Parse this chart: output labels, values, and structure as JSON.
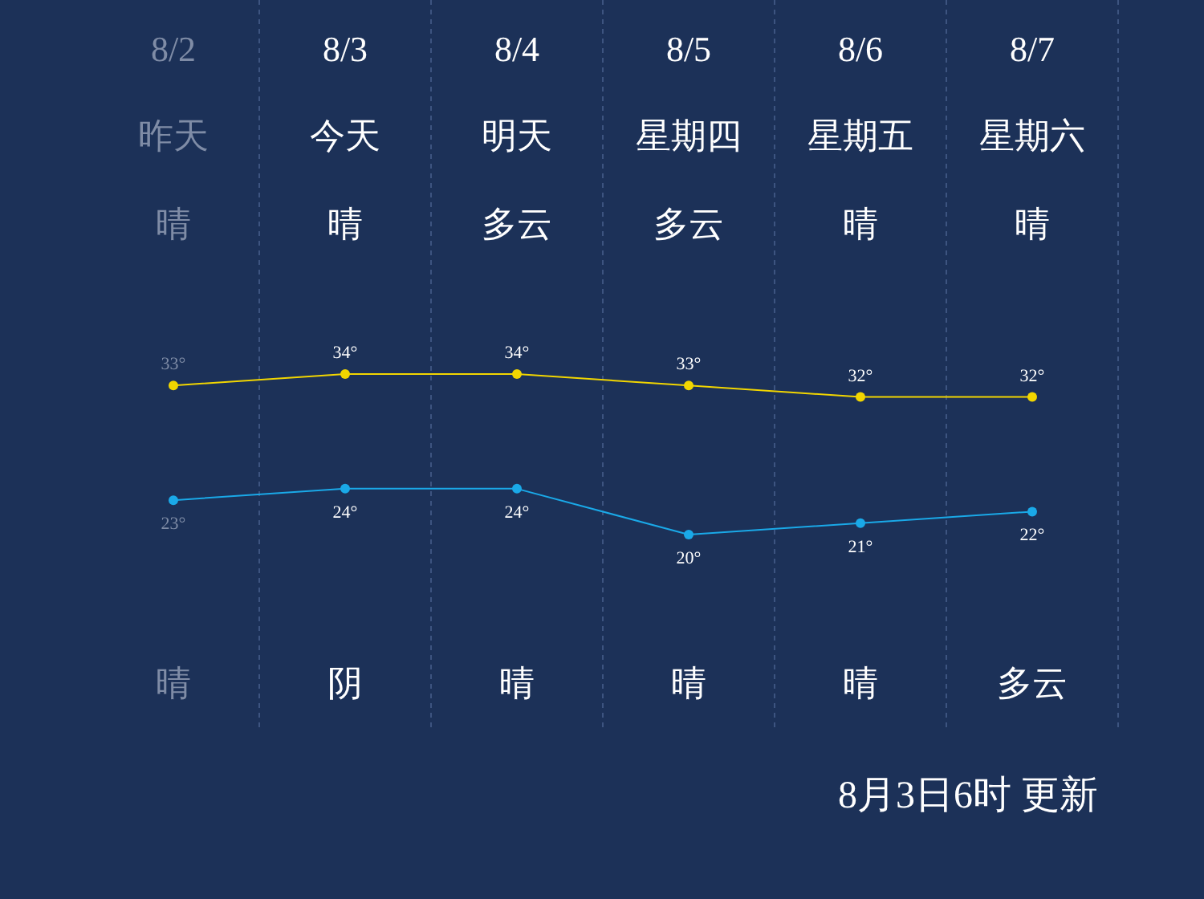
{
  "chart_data": {
    "type": "line",
    "categories": [
      "8/2",
      "8/3",
      "8/4",
      "8/5",
      "8/6",
      "8/7"
    ],
    "series": [
      {
        "color": "#f2d600",
        "values": [
          33,
          34,
          34,
          33,
          32,
          32
        ],
        "value_labels": [
          "33°",
          "34°",
          "34°",
          "33°",
          "32°",
          "32°"
        ]
      },
      {
        "color": "#1aa9e8",
        "values": [
          23,
          24,
          24,
          20,
          21,
          22
        ],
        "value_labels": [
          "23°",
          "24°",
          "24°",
          "20°",
          "21°",
          "22°"
        ]
      }
    ],
    "marker": "circle",
    "grid": "x",
    "annotations": [
      "昨天",
      "今天",
      "明天",
      "星期四",
      "星期五",
      "星期六",
      "晴",
      "晴",
      "多云",
      "多云",
      "晴",
      "晴",
      "晴",
      "阴",
      "晴",
      "晴",
      "晴",
      "多云",
      "8月3日6时 更新"
    ]
  }
}
